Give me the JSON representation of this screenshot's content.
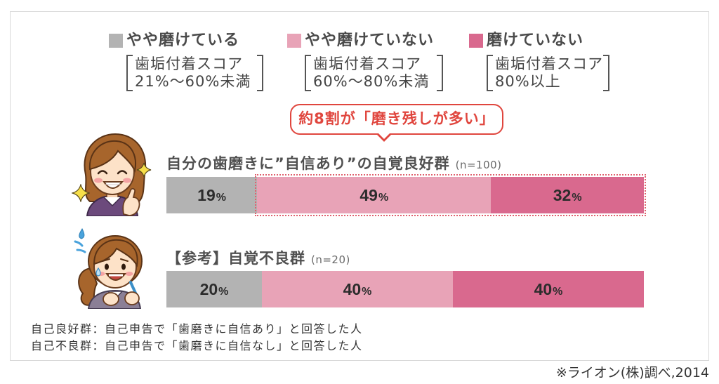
{
  "chart_data": {
    "type": "bar",
    "orientation": "horizontal",
    "stacked": true,
    "unit": "%",
    "xlim": [
      0,
      100
    ],
    "grid": false,
    "legend_position": "top",
    "categories": [
      "自分の歯磨きに”自信あり”の自覚良好群",
      "【参考】自覚不良群"
    ],
    "sample_sizes": [
      "(n=100)",
      "(n=20)"
    ],
    "series": [
      {
        "name": "やや磨けている",
        "score_label": "歯垢付着スコア",
        "score_range": "21%〜60%未満",
        "values": [
          19,
          20
        ],
        "color": "#b3b3b3"
      },
      {
        "name": "やや磨けていない",
        "score_label": "歯垢付着スコア",
        "score_range": "60%〜80%未満",
        "values": [
          49,
          40
        ],
        "color": "#e8a3b7"
      },
      {
        "name": "磨けていない",
        "score_label": "歯垢付着スコア",
        "score_range": "80%以上",
        "values": [
          32,
          40
        ],
        "color": "#d9698e"
      }
    ],
    "callout": "約8割が「磨き残しが多い」"
  },
  "colors": {
    "callout": "#e0463e",
    "highlight": "#e0606e"
  },
  "footnotes": [
    "自己良好群：自己申告で「歯磨きに自信あり」と回答した人",
    "自己不良群：自己申告で「歯磨きに自信なし」と回答した人"
  ],
  "source": "※ライオン(株)調べ,2014"
}
